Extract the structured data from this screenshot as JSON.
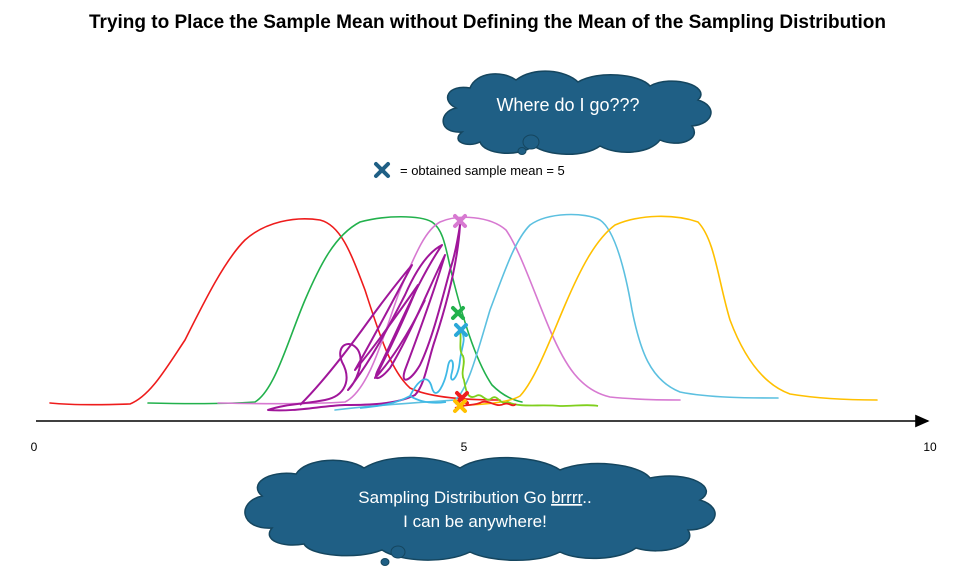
{
  "title": "Trying to Place the Sample Mean without Defining the Mean of the Sampling Distribution",
  "top_bubble": {
    "text": "Where do I go???"
  },
  "legend": {
    "icon": "x-mark-icon",
    "text": "= obtained sample mean = 5"
  },
  "axis": {
    "ticks": [
      "0",
      "5",
      "10"
    ]
  },
  "bottom_bubble": {
    "line1_a": "Sampling Distribution Go ",
    "line1_b": "brrrr",
    "line1_c": "..",
    "line2": "I can be anywhere!"
  },
  "colors": {
    "bubble": "#1f5f85",
    "red": "#ee1c1c",
    "green": "#22b14c",
    "pink": "#d779d1",
    "blue": "#5cc0e0",
    "yellow": "#ffc000",
    "purple": "#a0169a",
    "lime": "#7fcf1c"
  }
}
